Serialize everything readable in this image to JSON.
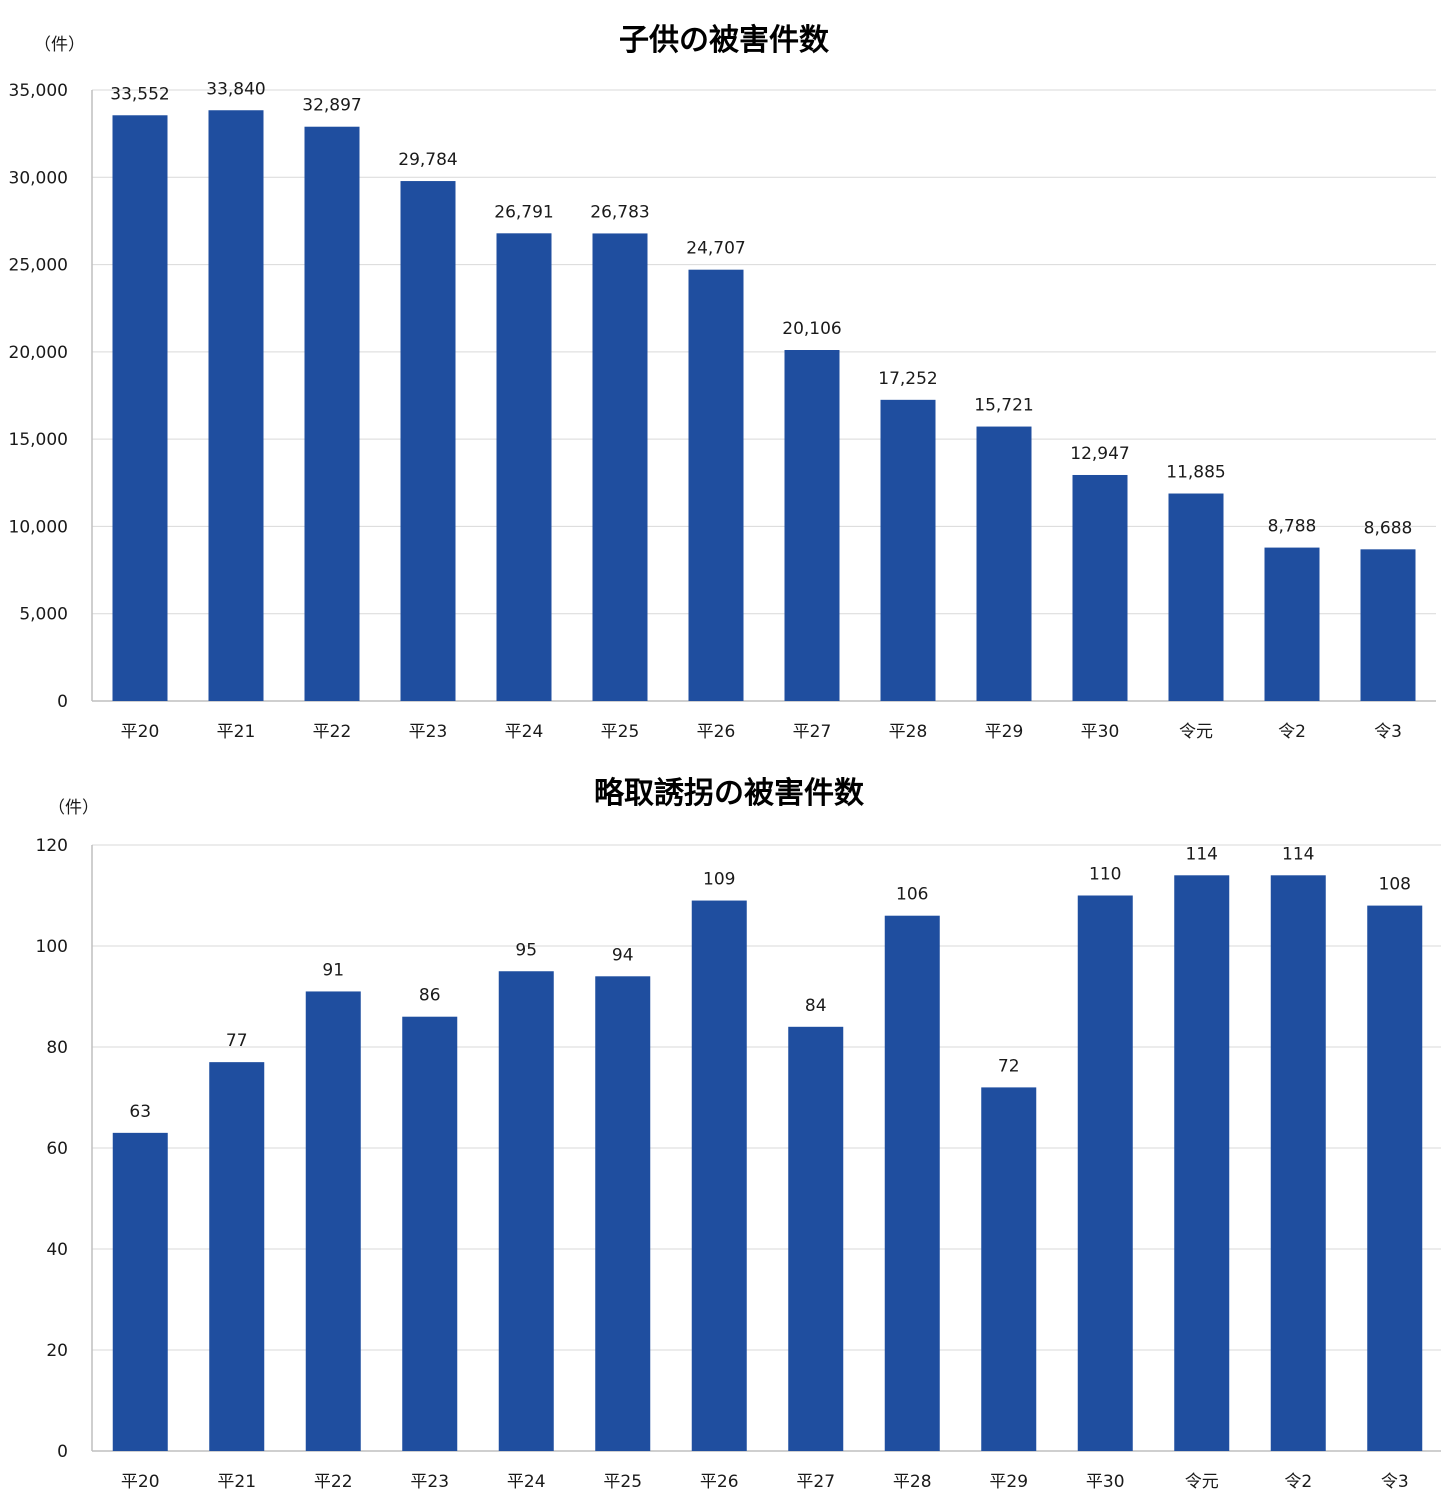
{
  "colors": {
    "bar": "#1f4e9f",
    "grid": "#d9d9d9",
    "axis": "#bfbfbf"
  },
  "chart_data": [
    {
      "type": "bar",
      "title": "子供の被害件数",
      "ylabel": "（件）",
      "xlabel": "",
      "ylim": [
        0,
        35000
      ],
      "yticks": [
        "0",
        "5,000",
        "10,000",
        "15,000",
        "20,000",
        "25,000",
        "30,000",
        "35,000"
      ],
      "ytick_values": [
        0,
        5000,
        10000,
        15000,
        20000,
        25000,
        30000,
        35000
      ],
      "categories": [
        "平20",
        "平21",
        "平22",
        "平23",
        "平24",
        "平25",
        "平26",
        "平27",
        "平28",
        "平29",
        "平30",
        "令元",
        "令2",
        "令3"
      ],
      "values": [
        33552,
        33840,
        32897,
        29784,
        26791,
        26783,
        24707,
        20106,
        17252,
        15721,
        12947,
        11885,
        8788,
        8688
      ],
      "data_labels": [
        "33,552",
        "33,840",
        "32,897",
        "29,784",
        "26,791",
        "26,783",
        "24,707",
        "20,106",
        "17,252",
        "15,721",
        "12,947",
        "11,885",
        "8,788",
        "8,688"
      ],
      "grid": true,
      "legend": "none"
    },
    {
      "type": "bar",
      "title": "略取誘拐の被害件数",
      "ylabel": "（件）",
      "xlabel": "",
      "ylim": [
        0,
        120
      ],
      "yticks": [
        "0",
        "20",
        "40",
        "60",
        "80",
        "100",
        "120"
      ],
      "ytick_values": [
        0,
        20,
        40,
        60,
        80,
        100,
        120
      ],
      "categories": [
        "平20",
        "平21",
        "平22",
        "平23",
        "平24",
        "平25",
        "平26",
        "平27",
        "平28",
        "平29",
        "平30",
        "令元",
        "令2",
        "令3"
      ],
      "values": [
        63,
        77,
        91,
        86,
        95,
        94,
        109,
        84,
        106,
        72,
        110,
        114,
        114,
        108
      ],
      "data_labels": [
        "63",
        "77",
        "91",
        "86",
        "95",
        "94",
        "109",
        "84",
        "106",
        "72",
        "110",
        "114",
        "114",
        "108"
      ],
      "grid": true,
      "legend": "none"
    }
  ]
}
